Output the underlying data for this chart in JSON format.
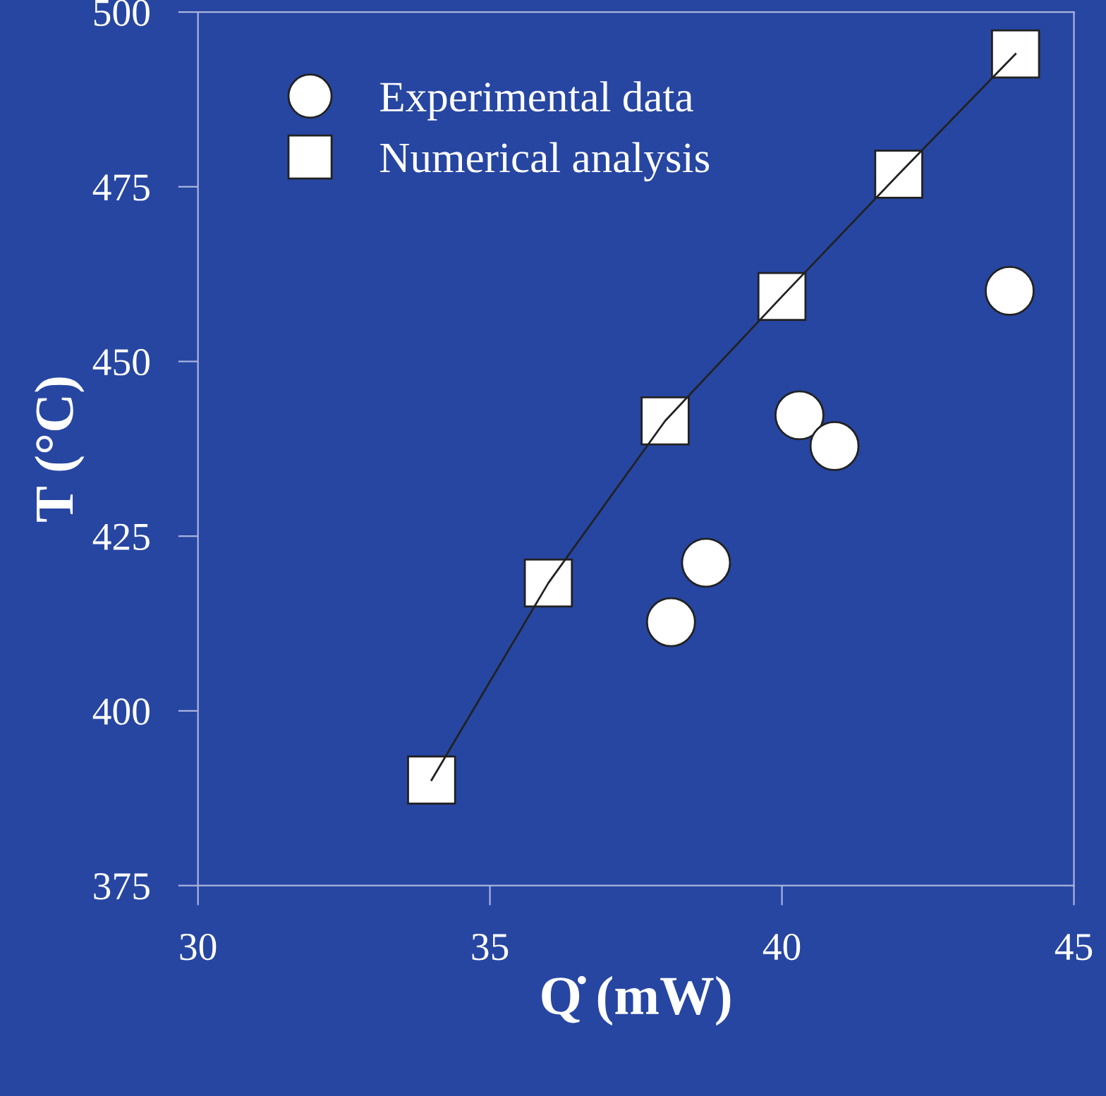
{
  "chart_data": {
    "type": "scatter",
    "xlabel": "Q̇ (mW)",
    "ylabel": "T (°C)",
    "xlim": [
      30,
      45
    ],
    "xticks": [
      30,
      35,
      40,
      45
    ],
    "ylim": [
      375,
      500
    ],
    "yticks": [
      375,
      400,
      425,
      450,
      475,
      500
    ],
    "grid": false,
    "legend": "top left",
    "series": [
      {
        "name": "Experimental data",
        "type": "scatter",
        "marker": "circle",
        "color": "#ffffff",
        "x": [
          38.1,
          38.7,
          40.3,
          40.9,
          43.9
        ],
        "values": [
          412.7,
          421.2,
          442.3,
          437.9,
          460.1
        ]
      },
      {
        "name": "Numerical analysis",
        "type": "line",
        "marker": "square",
        "color": "#ffffff",
        "x": [
          34,
          36,
          38,
          40,
          42,
          44
        ],
        "values": [
          390.1,
          418.3,
          441.5,
          459.3,
          476.8,
          494
        ]
      }
    ]
  }
}
